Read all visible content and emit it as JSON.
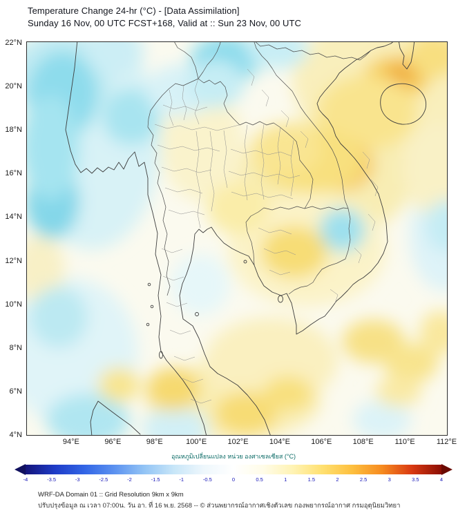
{
  "header": {
    "title": "Temperature Change 24-hr (°C) - [Data Assimilation]",
    "subtitle": "Sunday 16 Nov, 00 UTC FCST+168, Valid at :: Sun 23 Nov, 00 UTC"
  },
  "map": {
    "lat_ticks": [
      "22°N",
      "20°N",
      "18°N",
      "16°N",
      "14°N",
      "12°N",
      "10°N",
      "8°N",
      "6°N",
      "4°N"
    ],
    "lon_ticks": [
      "94°E",
      "96°E",
      "98°E",
      "100°E",
      "102°E",
      "104°E",
      "106°E",
      "108°E",
      "110°E",
      "112°E"
    ],
    "lon_range": [
      91.85,
      112.05
    ],
    "lat_range": [
      3.97,
      22.06
    ],
    "field_blobs": [
      [
        95.0,
        17.5,
        3.3,
        5.0,
        "#d8f2f6"
      ],
      [
        93.5,
        20.5,
        2.5,
        2.0,
        "#c2ebf3"
      ],
      [
        109.2,
        20.2,
        4.6,
        3.2,
        "#f9efbc"
      ],
      [
        106.2,
        15.8,
        4.2,
        2.8,
        "#f8edb4"
      ],
      [
        105.3,
        12.5,
        3.8,
        2.6,
        "#fbf3c8"
      ],
      [
        101.8,
        5.6,
        4.2,
        1.8,
        "#f9eeb6"
      ],
      [
        94.0,
        7.8,
        3.2,
        3.4,
        "#e0f4f8"
      ],
      [
        111.9,
        13.2,
        1.7,
        2.6,
        "#def3f8"
      ],
      [
        100.3,
        17.3,
        2.0,
        2.6,
        "#faf3cc"
      ],
      [
        111.6,
        16.2,
        1.7,
        2.2,
        "#f9f1c6"
      ],
      [
        103.6,
        7.4,
        3.2,
        2.0,
        "#faf0c0"
      ],
      [
        92.5,
        11.6,
        1.2,
        1.6,
        "#f8f0c6"
      ],
      [
        93.6,
        19.6,
        1.7,
        2.0,
        "#8edcec"
      ],
      [
        93.1,
        14.7,
        1.3,
        1.7,
        "#84d7e9"
      ],
      [
        93.0,
        17.2,
        1.4,
        2.4,
        "#a5e4f0"
      ],
      [
        96.9,
        18.6,
        1.4,
        1.3,
        "#a8e4f0"
      ],
      [
        99.2,
        19.8,
        1.6,
        1.2,
        "#d8f2f7"
      ],
      [
        101.4,
        21.2,
        1.7,
        1.1,
        "#8cdbec"
      ],
      [
        100.9,
        20.1,
        1.4,
        1.1,
        "#c6edf4"
      ],
      [
        103.9,
        21.7,
        1.5,
        0.9,
        "#c8eef5"
      ],
      [
        107.0,
        13.4,
        1.1,
        1.0,
        "#9de0ee"
      ],
      [
        93.4,
        9.4,
        1.4,
        1.4,
        "#bce9f2"
      ],
      [
        94.8,
        4.7,
        2.0,
        1.2,
        "#b0e6f1"
      ],
      [
        99.0,
        4.3,
        1.6,
        1.0,
        "#d2f0f6"
      ],
      [
        112.0,
        13.6,
        1.0,
        1.2,
        "#c4ecf4"
      ],
      [
        96.1,
        21.6,
        1.4,
        1.1,
        "#cceef5"
      ],
      [
        100.2,
        10.9,
        1.4,
        1.4,
        "#e6f7f9"
      ],
      [
        108.9,
        4.7,
        1.4,
        0.9,
        "#dcf3f8"
      ],
      [
        109.6,
        20.4,
        1.6,
        1.0,
        "#f6cf5c"
      ],
      [
        109.9,
        20.6,
        0.8,
        0.55,
        "#f0ae3c"
      ],
      [
        108.2,
        18.8,
        2.4,
        1.7,
        "#f9e48e"
      ],
      [
        111.4,
        21.4,
        1.3,
        1.0,
        "#f8df80"
      ],
      [
        106.9,
        16.4,
        1.6,
        1.2,
        "#f5c254"
      ],
      [
        107.1,
        16.5,
        0.85,
        0.6,
        "#efa53e"
      ],
      [
        105.5,
        16.6,
        2.6,
        1.5,
        "#f8e07e"
      ],
      [
        104.3,
        17.1,
        1.7,
        1.2,
        "#f9e592"
      ],
      [
        104.7,
        12.4,
        1.6,
        1.2,
        "#f7dd76"
      ],
      [
        98.9,
        6.1,
        1.3,
        1.0,
        "#f6d970"
      ],
      [
        102.4,
        5.0,
        1.5,
        1.0,
        "#f7dc74"
      ],
      [
        104.4,
        5.9,
        1.2,
        0.8,
        "#f8e07e"
      ],
      [
        108.5,
        8.3,
        1.5,
        1.0,
        "#f7e186"
      ],
      [
        110.3,
        7.3,
        1.3,
        0.9,
        "#f8e48e"
      ],
      [
        111.7,
        8.7,
        1.0,
        1.0,
        "#f9e89e"
      ],
      [
        109.7,
        6.0,
        1.1,
        0.7,
        "#f9eaa6"
      ],
      [
        102.0,
        14.4,
        1.5,
        1.2,
        "#faeda9"
      ],
      [
        96.3,
        6.3,
        1.0,
        0.8,
        "#f8e590"
      ]
    ]
  },
  "colorbar": {
    "label": "อุณหภูมิเปลี่ยนแปลง หน่วย องศาเซลเซียส (°C)",
    "ticks": [
      "-4",
      "-3.5",
      "-3",
      "-2.5",
      "-2",
      "-1.5",
      "-1",
      "-0.5",
      "0",
      "0.5",
      "1",
      "1.5",
      "2",
      "2.5",
      "3",
      "3.5",
      "4"
    ],
    "gradient": [
      "#14147a",
      "#1e3cc8",
      "#3366e6",
      "#5c92f0",
      "#93c4f5",
      "#c8e6f8",
      "#eef7fc",
      "#ffffff",
      "#fffce8",
      "#fff3b4",
      "#ffe070",
      "#fdbf3e",
      "#f68b20",
      "#d93a12",
      "#8c0e04"
    ],
    "left_arrow_color": "#11115e",
    "right_arrow_color": "#6b0a02"
  },
  "footer": {
    "line1": "WRF-DA Domain 01 :: Grid Resolution 9km x 9km",
    "line2": "ปรับปรุงข้อมูล ณ เวลา 07:00น. วัน อา. ที่ 16 พ.ย. 2568 -- © ส่วนพยากรณ์อากาศเชิงตัวเลข กองพยากรณ์อากาศ กรมอุตุนิยมวิทยา"
  }
}
